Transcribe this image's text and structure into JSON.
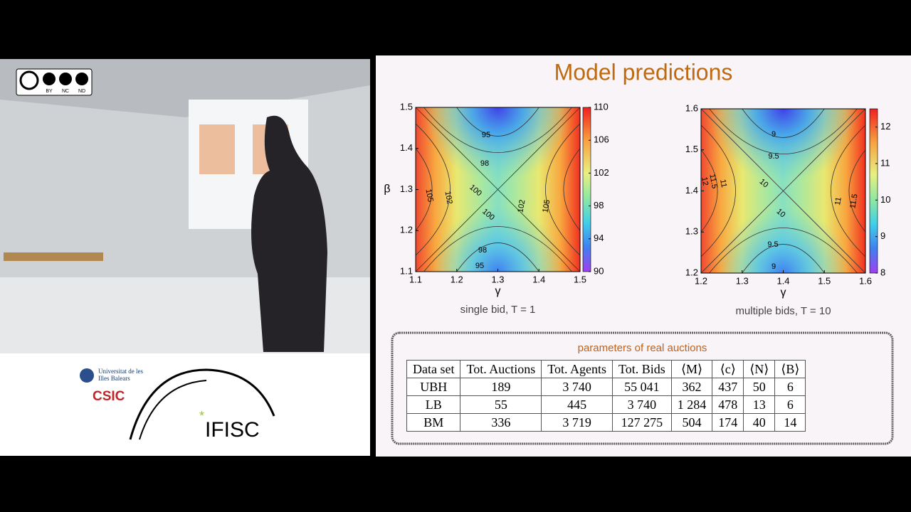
{
  "slide": {
    "title": "Model predictions"
  },
  "chart_data": [
    {
      "type": "contour",
      "xlabel": "γ",
      "ylabel": "β",
      "caption": "single bid, T = 1",
      "xlim": [
        1.1,
        1.5
      ],
      "ylim": [
        1.1,
        1.5
      ],
      "xticks": [
        1.1,
        1.2,
        1.3,
        1.4,
        1.5
      ],
      "yticks": [
        1.1,
        1.2,
        1.3,
        1.4,
        1.5
      ],
      "colorbar_lim": [
        90,
        110
      ],
      "colorbar_ticks": [
        90,
        94,
        98,
        102,
        106,
        110
      ],
      "contour_labels": [
        95,
        98,
        100,
        100,
        102,
        105,
        102,
        105,
        98,
        95
      ]
    },
    {
      "type": "contour",
      "xlabel": "γ",
      "caption": "multiple bids, T = 10",
      "xlim": [
        1.2,
        1.6
      ],
      "ylim": [
        1.2,
        1.6
      ],
      "xticks": [
        1.2,
        1.3,
        1.4,
        1.5,
        1.6
      ],
      "yticks": [
        1.2,
        1.3,
        1.4,
        1.5,
        1.6
      ],
      "colorbar_lim": [
        8,
        12.5
      ],
      "colorbar_ticks": [
        8,
        9,
        10,
        11,
        12
      ],
      "contour_labels": [
        9,
        9.5,
        10,
        10,
        11,
        11.5,
        12,
        11,
        11.5,
        9.5,
        9
      ]
    }
  ],
  "table": {
    "title": "parameters of real auctions",
    "header": [
      "Data set",
      "Tot. Auctions",
      "Tot. Agents",
      "Tot. Bids",
      "⟨M⟩",
      "⟨c⟩",
      "⟨N⟩",
      "⟨B⟩"
    ],
    "rows": [
      [
        "UBH",
        "189",
        "3 740",
        "55 041",
        "362",
        "437",
        "50",
        "6"
      ],
      [
        "LB",
        "55",
        "445",
        "3 740",
        "1 284",
        "478",
        "13",
        "6"
      ],
      [
        "BM",
        "336",
        "3 719",
        "127 275",
        "504",
        "174",
        "40",
        "14"
      ]
    ]
  },
  "video": {
    "badge": [
      "BY",
      "NC",
      "ND"
    ],
    "university": "Universitat de les Illes Balears",
    "csic": "CSIC",
    "institute": "IFISC"
  }
}
